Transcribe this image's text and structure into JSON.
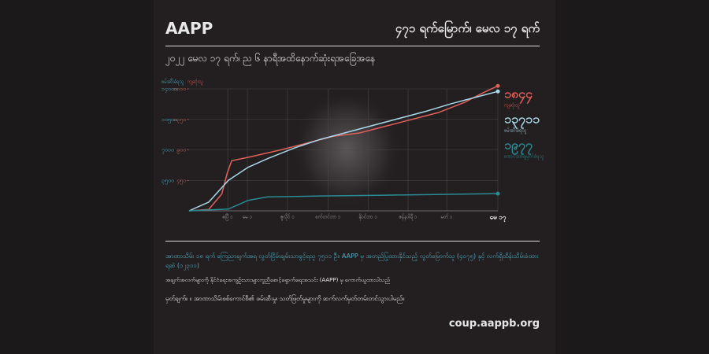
{
  "header": {
    "brand": "AAPP",
    "title": "၄၇၁ ရက်မြောက်၊ မေလ ၁၇ ရက်"
  },
  "chart_data": {
    "type": "line",
    "title": "၂၀၂၂ မေလ ၁၇ ရက်၊ ည ၆ နာရီအထိနောက်ဆုံးရအခြေအနေ",
    "ylabel": "ဖမ်းဆီးခံရသူ",
    "y2label": "ကျဆုံးသူ",
    "xlim": [
      0,
      471
    ],
    "xticks": [
      {
        "value": 59,
        "label": "ဧပြီ ၁"
      },
      {
        "value": 89,
        "label": "မေ ၁"
      },
      {
        "value": 150,
        "label": "ဇူလိုင် ၁"
      },
      {
        "value": 212,
        "label": "စက်တင်ဘာ ၁"
      },
      {
        "value": 273,
        "label": "နိုဝင်ဘာ ၁"
      },
      {
        "value": 334,
        "label": "ဇန်နဝါရီ ၁"
      },
      {
        "value": 393,
        "label": "မတ် ၁"
      },
      {
        "value": 471,
        "label": "မေ ၁၇"
      }
    ],
    "ylim": [
      0,
      14000
    ],
    "yticks": [
      {
        "value": 3500,
        "label": "၃၅၀၀"
      },
      {
        "value": 7000,
        "label": "၇၀၀၀"
      },
      {
        "value": 10500,
        "label": "၁၀၅၀၀"
      },
      {
        "value": 14000,
        "label": "၁၄၀၀၀"
      }
    ],
    "y2lim": [
      0,
      1800
    ],
    "y2ticks": [
      {
        "value": 450,
        "label": "၄၅၀"
      },
      {
        "value": 900,
        "label": "၉၀၀"
      },
      {
        "value": 1350,
        "label": "၁၃၅၀"
      },
      {
        "value": 1800,
        "label": "၁၈၀၀"
      }
    ],
    "grid": true,
    "series": [
      {
        "name": "ကျဆုံးသူ",
        "color": "#e0605a",
        "axis": "y2",
        "x": [
          0,
          30,
          50,
          58,
          65,
          90,
          140,
          180,
          220,
          260,
          300,
          340,
          380,
          420,
          450,
          471
        ],
        "values": [
          0,
          20,
          250,
          550,
          740,
          790,
          900,
          1000,
          1100,
          1150,
          1250,
          1350,
          1450,
          1600,
          1750,
          1844
        ],
        "value_labels": [
          null,
          null,
          null,
          null,
          null,
          null,
          null,
          null,
          null,
          null,
          null,
          null,
          null,
          null,
          null,
          "၁၈၄၄"
        ]
      },
      {
        "name": "ဖမ်းဆီးခံရသူ",
        "color": "#a8d8ea",
        "x": [
          0,
          30,
          60,
          90,
          120,
          160,
          200,
          240,
          280,
          320,
          360,
          400,
          440,
          471
        ],
        "values": [
          0,
          1000,
          3500,
          5000,
          6000,
          7200,
          8200,
          9000,
          9800,
          10600,
          11400,
          12300,
          13100,
          13711
        ],
        "value_labels": [
          null,
          null,
          null,
          null,
          null,
          null,
          null,
          null,
          null,
          null,
          null,
          null,
          null,
          "၁၃၇၁၁"
        ]
      },
      {
        "name": "ထောင်ဒဏ်ချမှတ်ခံရသူ",
        "color": "#2a8a95",
        "x": [
          0,
          60,
          90,
          120,
          200,
          300,
          471
        ],
        "values": [
          0,
          200,
          1200,
          1600,
          1700,
          1800,
          1977
        ],
        "value_labels": [
          null,
          null,
          null,
          null,
          null,
          null,
          "၁၉၇၇"
        ]
      }
    ]
  },
  "footer": {
    "summary": "အာဏာသိမ်း ၁၈ ရက် ကြေညာချက်အရ လွတ်ငြိမ်းချမ်းသာခွင့်ရသူ ၇၅၁၁ ဦး၊ AAPP မှ အတည်ပြုထားနိုင်သည့် လွတ်မြောက်သူ (၄၀၇၅) နှင့် လက်ရှိထိန်းသိမ်းခံထားရဆဲ (၁၂၃၁၁)",
    "source": "အချက်အလက်များကို နိုင်ငံရေးအကျဉ်းသားများကူညီစောင့်ရှောက်ရေးအသင်း (AAPP) မှ ကောက်ယူထားပါသည်",
    "note": "မှတ်ချက်။ ။ အာဏာသိမ်းစစ်ကောင်စီ၏ ဖမ်းဆီးမှု၊ သတ်ဖြတ်မှုများကို ဆက်လက်မှတ်တမ်းတင်သွားပါမည်။",
    "url": "coup.aappb.org"
  }
}
